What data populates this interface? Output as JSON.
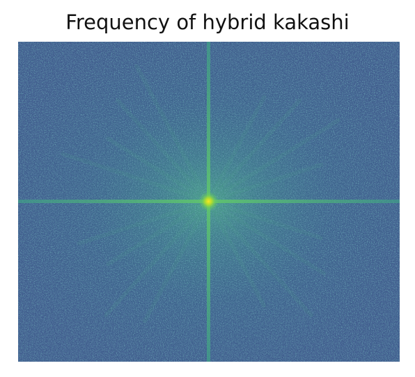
{
  "chart_data": {
    "type": "heatmap",
    "title": "Frequency of hybrid kakashi",
    "xlabel": "",
    "ylabel": "",
    "axes_visible": false,
    "colormap": "viridis",
    "colors": {
      "low": "#3b5288",
      "mid": "#2f8c8c",
      "high": "#5fc563",
      "peak": "#fde725"
    },
    "features": {
      "center_peak": "bright yellow-green spot at spectrum center",
      "cross_lines": "bright horizontal and vertical lines through the center",
      "radial_streaks": "faint diagonal streaks radiating from the center",
      "background": "noisy blue-teal magnitude texture"
    }
  }
}
